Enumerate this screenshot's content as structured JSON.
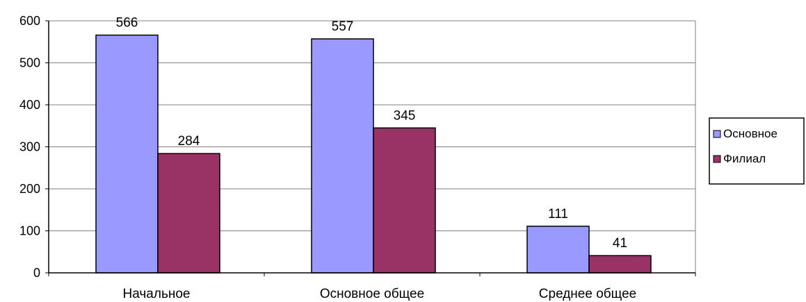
{
  "chart_data": {
    "type": "bar",
    "categories": [
      "Начальное",
      "Основное общее",
      "Среднее общее"
    ],
    "series": [
      {
        "name": "Основное",
        "values": [
          566,
          557,
          111
        ],
        "color": "#9999FF"
      },
      {
        "name": "Филиал",
        "values": [
          284,
          345,
          41
        ],
        "color": "#993366"
      }
    ],
    "yticks": [
      0,
      100,
      200,
      300,
      400,
      500,
      600
    ],
    "ylim": [
      0,
      600
    ],
    "grid": true,
    "data_labels": true,
    "legend_position": "right"
  }
}
